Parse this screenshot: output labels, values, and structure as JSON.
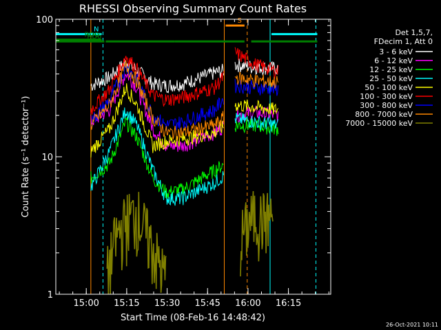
{
  "chart_data": {
    "type": "line",
    "title": "RHESSI Observing Summary Count Rates",
    "xlabel": "Start Time (08-Feb-16 14:48:42)",
    "ylabel": "Count Rate (s⁻¹ detector⁻¹)",
    "xlim_minutes_from_start": [
      0,
      102
    ],
    "xtick_labels": [
      "15:00",
      "15:15",
      "15:30",
      "15:45",
      "16:00",
      "16:15"
    ],
    "xtick_minutes_from_start": [
      11.3,
      26.3,
      41.3,
      56.3,
      71.3,
      86.3
    ],
    "ylim": [
      1,
      100
    ],
    "yscale": "log",
    "ytick_labels": [
      "1",
      "10",
      "100"
    ],
    "ytick_values": [
      1,
      10,
      100
    ],
    "legend_header": [
      "Det 1,5,7,",
      "FDecim 1, Att 0"
    ],
    "legend_placement": "right",
    "footer_timestamp": "26-Oct-2021 10:11",
    "grid": false,
    "series": [
      {
        "name": "3 - 6 keV",
        "color": "#ffffff",
        "values_t": [
          13,
          20,
          26,
          30,
          36,
          41,
          47,
          59,
          63,
          66,
          74,
          82
        ],
        "values": [
          33,
          38,
          49,
          43,
          34,
          33,
          34,
          41,
          43,
          47,
          45,
          44
        ]
      },
      {
        "name": "6 - 12 keV",
        "color": "#ff00ff",
        "values_t": [
          13,
          20,
          26,
          30,
          36,
          41,
          47,
          59,
          63,
          66,
          74,
          82
        ],
        "values": [
          18,
          22,
          41,
          32,
          16,
          12,
          12,
          15,
          17,
          20,
          21,
          20
        ]
      },
      {
        "name": "12 - 25 keV",
        "color": "#00ff00",
        "values_t": [
          13,
          20,
          26,
          30,
          36,
          41,
          47,
          59,
          63,
          66,
          74,
          82
        ],
        "values": [
          7,
          9,
          18,
          14,
          7,
          5.5,
          5.8,
          8,
          9,
          17,
          17,
          16
        ]
      },
      {
        "name": "25 - 50 keV",
        "color": "#00ffff",
        "values_t": [
          13,
          20,
          26,
          30,
          36,
          41,
          47,
          59,
          63,
          66,
          74,
          82
        ],
        "values": [
          6,
          11,
          22,
          17,
          8,
          5,
          5,
          6.5,
          7.5,
          19,
          18,
          17
        ]
      },
      {
        "name": "50 - 100 keV",
        "color": "#ffff00",
        "values_t": [
          13,
          20,
          26,
          30,
          36,
          41,
          47,
          59,
          63,
          66,
          74,
          82
        ],
        "values": [
          11,
          16,
          32,
          24,
          12,
          13,
          13.5,
          15,
          17,
          24,
          23,
          22
        ]
      },
      {
        "name": "100 - 300 keV",
        "color": "#ff0000",
        "values_t": [
          13,
          20,
          26,
          30,
          36,
          41,
          47,
          59,
          63,
          66,
          74,
          82
        ],
        "values": [
          22,
          31,
          54,
          44,
          28,
          26,
          27,
          32,
          40,
          58,
          47,
          42
        ]
      },
      {
        "name": "300 - 800 keV",
        "color": "#0000ff",
        "values_t": [
          13,
          20,
          26,
          30,
          36,
          41,
          47,
          59,
          63,
          66,
          74,
          82
        ],
        "values": [
          18,
          26,
          45,
          37,
          20,
          17,
          18,
          22,
          28,
          33,
          32,
          31
        ]
      },
      {
        "name": "800 - 7000 keV",
        "color": "#ff8800",
        "values_t": [
          13,
          20,
          26,
          30,
          36,
          41,
          47,
          59,
          63,
          66,
          74,
          82
        ],
        "values": [
          17,
          24,
          46,
          36,
          19,
          15,
          15,
          17,
          20,
          38,
          36,
          35
        ]
      },
      {
        "name": "7000 - 15000 keV",
        "color": "#808000",
        "values_t": [
          19,
          22,
          26,
          30,
          33,
          36,
          40,
          69,
          72,
          74,
          76,
          80
        ],
        "values": [
          1.4,
          2.5,
          3.5,
          4.0,
          3.0,
          2.2,
          1.4,
          2.7,
          3.5,
          3.8,
          3.6,
          3.7
        ]
      }
    ],
    "annotations": [
      {
        "text": "N",
        "color": "#00ffff",
        "segments_t": [
          [
            0,
            17
          ],
          [
            80,
            97
          ]
        ],
        "y": 78
      },
      {
        "text": "RD0",
        "color": "#008000",
        "segments_t": [
          [
            0,
            17
          ]
        ],
        "y": 71
      },
      {
        "text": "RD6",
        "color": "#008000",
        "segments_t": [
          [
            0,
            18
          ],
          [
            18.5,
            44
          ],
          [
            44,
            70
          ],
          [
            72.5,
            90
          ],
          [
            90,
            97
          ]
        ],
        "y": 69
      },
      {
        "text": "S",
        "color": "#ff8800",
        "segments_t": [
          [
            63,
            70
          ]
        ],
        "y": 90
      }
    ],
    "vertical_markers": [
      {
        "t": 13.0,
        "color": "#ff8800",
        "style": "solid"
      },
      {
        "t": 17.5,
        "color": "#00ffff",
        "style": "dashed"
      },
      {
        "t": 62.5,
        "color": "#ff8800",
        "style": "solid"
      },
      {
        "t": 71.0,
        "color": "#ff8800",
        "style": "dashed"
      },
      {
        "t": 79.5,
        "color": "#00ffff",
        "style": "solid"
      },
      {
        "t": 96.5,
        "color": "#00ffff",
        "style": "dashed"
      }
    ]
  }
}
